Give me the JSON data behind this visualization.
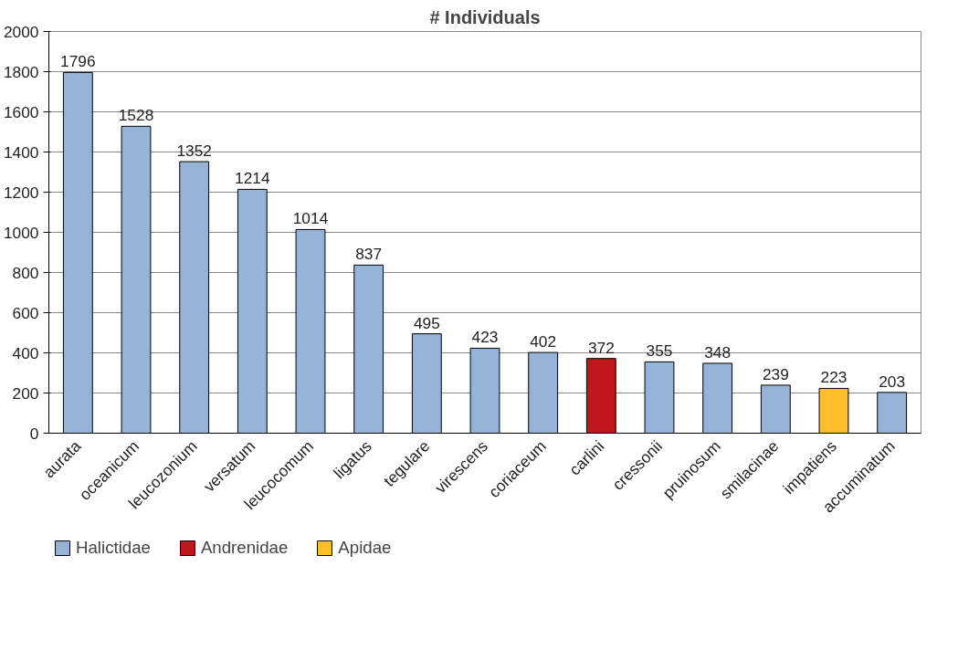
{
  "chart_data": {
    "type": "bar",
    "title": "# Individuals",
    "categories": [
      "aurata",
      "oceanicum",
      "leucozonium",
      "versatum",
      "leucocomum",
      "ligatus",
      "tegulare",
      "virescens",
      "coriaceum",
      "carlini",
      "cressonii",
      "pruinosum",
      "smilacinae",
      "impatiens",
      "accuminatum"
    ],
    "series": [
      {
        "name": "Halictidae",
        "color": "#95b3d7",
        "values": [
          1796,
          1528,
          1352,
          1214,
          1014,
          837,
          495,
          423,
          402,
          null,
          355,
          348,
          239,
          null,
          203
        ]
      },
      {
        "name": "Andrenidae",
        "color": "#c0171d",
        "values": [
          null,
          null,
          null,
          null,
          null,
          null,
          null,
          null,
          null,
          372,
          null,
          null,
          null,
          null,
          null
        ]
      },
      {
        "name": "Apidae",
        "color": "#fdbe2a",
        "values": [
          null,
          null,
          null,
          null,
          null,
          null,
          null,
          null,
          null,
          null,
          null,
          null,
          null,
          223,
          null
        ]
      }
    ],
    "ylim": [
      0,
      2000
    ],
    "yticks": [
      0,
      200,
      400,
      600,
      800,
      1000,
      1200,
      1400,
      1600,
      1800,
      2000
    ],
    "grid": "y",
    "legend": "bottom",
    "data_labels": true
  }
}
